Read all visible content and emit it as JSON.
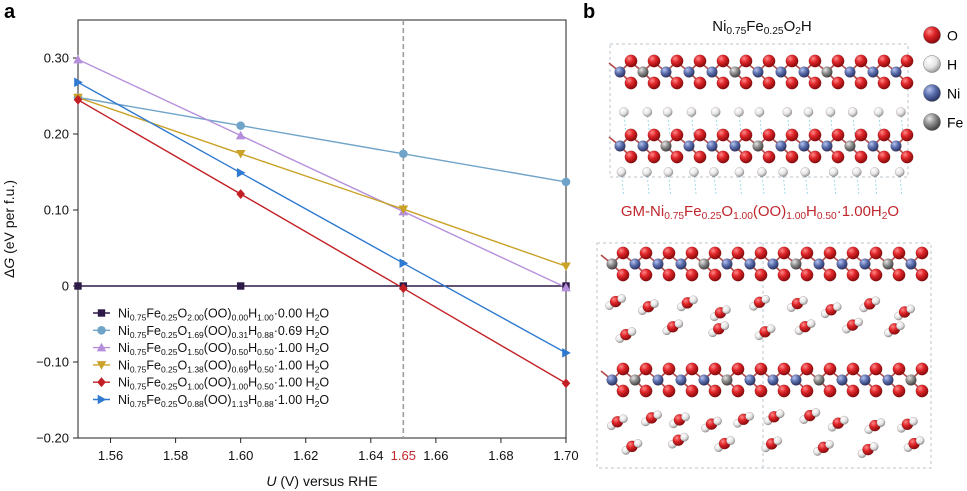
{
  "panels": {
    "a": "a",
    "b": "b"
  },
  "chart_data": {
    "type": "line",
    "xlabel_italic": "U",
    "xlabel_rest": " (V) versus RHE",
    "ylabel_italic": "G",
    "ylabel_prefix": "Δ",
    "ylabel_rest": " (eV per f.u.)",
    "xlim": [
      1.55,
      1.7
    ],
    "ylim": [
      -0.2,
      0.35
    ],
    "xticks": [
      "1.56",
      "1.58",
      "1.60",
      "1.62",
      "1.64",
      "1.66",
      "1.68",
      "1.70"
    ],
    "xtick_values": [
      1.56,
      1.58,
      1.6,
      1.62,
      1.64,
      1.66,
      1.68,
      1.7
    ],
    "yticks": [
      "0.30",
      "0.20",
      "0.10",
      "0",
      "−0.10",
      "−0.20"
    ],
    "ytick_values": [
      0.3,
      0.2,
      0.1,
      0,
      -0.1,
      -0.2
    ],
    "vline": {
      "x": 1.65,
      "label": "1.65",
      "color": "#c0272d"
    },
    "series": [
      {
        "name": "Ni0.75Fe0.25O2.00(OO)0.00H1.00·0.00 H2O",
        "name_parts": [
          [
            "Ni",
            ""
          ],
          [
            "0.75",
            "sub"
          ],
          [
            "Fe",
            ""
          ],
          [
            "0.25",
            "sub"
          ],
          [
            "O",
            ""
          ],
          [
            "2.00",
            "sub"
          ],
          [
            "(OO)",
            ""
          ],
          [
            "0.00",
            "sub"
          ],
          [
            "H",
            ""
          ],
          [
            "1.00",
            "sub"
          ],
          [
            "·0.00 H",
            ""
          ],
          [
            "2",
            "sub"
          ],
          [
            "O",
            ""
          ]
        ],
        "color": "#2e1a47",
        "marker": "square",
        "x": [
          1.55,
          1.6,
          1.65,
          1.7
        ],
        "y": [
          0.0,
          0.0,
          0.0,
          0.0
        ]
      },
      {
        "name": "Ni0.75Fe0.25O1.69(OO)0.31H0.88·0.69 H2O",
        "name_parts": [
          [
            "Ni",
            ""
          ],
          [
            "0.75",
            "sub"
          ],
          [
            "Fe",
            ""
          ],
          [
            "0.25",
            "sub"
          ],
          [
            "O",
            ""
          ],
          [
            "1.69",
            "sub"
          ],
          [
            "(OO)",
            ""
          ],
          [
            "0.31",
            "sub"
          ],
          [
            "H",
            ""
          ],
          [
            "0.88",
            "sub"
          ],
          [
            "·0.69 H",
            ""
          ],
          [
            "2",
            "sub"
          ],
          [
            "O",
            ""
          ]
        ],
        "color": "#6fa4c8",
        "marker": "circle",
        "x": [
          1.55,
          1.6,
          1.65,
          1.7
        ],
        "y": [
          0.248,
          0.211,
          0.174,
          0.137
        ]
      },
      {
        "name": "Ni0.75Fe0.25O1.50(OO)0.50H0.50·1.00 H2O",
        "name_parts": [
          [
            "Ni",
            ""
          ],
          [
            "0.75",
            "sub"
          ],
          [
            "Fe",
            ""
          ],
          [
            "0.25",
            "sub"
          ],
          [
            "O",
            ""
          ],
          [
            "1.50",
            "sub"
          ],
          [
            "(OO)",
            ""
          ],
          [
            "0.50",
            "sub"
          ],
          [
            "H",
            ""
          ],
          [
            "0.50",
            "sub"
          ],
          [
            "·1.00 H",
            ""
          ],
          [
            "2",
            "sub"
          ],
          [
            "O",
            ""
          ]
        ],
        "color": "#b68fdc",
        "marker": "triangle-up",
        "x": [
          1.55,
          1.6,
          1.65,
          1.7
        ],
        "y": [
          0.298,
          0.198,
          0.098,
          -0.002
        ]
      },
      {
        "name": "Ni0.75Fe0.25O1.38(OO)0.69H0.50·1.00 H2O",
        "name_parts": [
          [
            "Ni",
            ""
          ],
          [
            "0.75",
            "sub"
          ],
          [
            "Fe",
            ""
          ],
          [
            "0.25",
            "sub"
          ],
          [
            "O",
            ""
          ],
          [
            "1.38",
            "sub"
          ],
          [
            "(OO)",
            ""
          ],
          [
            "0.69",
            "sub"
          ],
          [
            "H",
            ""
          ],
          [
            "0.50",
            "sub"
          ],
          [
            "·1.00 H",
            ""
          ],
          [
            "2",
            "sub"
          ],
          [
            "O",
            ""
          ]
        ],
        "color": "#c9a227",
        "marker": "triangle-down",
        "x": [
          1.55,
          1.6,
          1.65,
          1.7
        ],
        "y": [
          0.248,
          0.174,
          0.101,
          0.026
        ]
      },
      {
        "name": "Ni0.75Fe0.25O1.00(OO)1.00H0.50·1.00 H2O",
        "name_parts": [
          [
            "Ni",
            ""
          ],
          [
            "0.75",
            "sub"
          ],
          [
            "Fe",
            ""
          ],
          [
            "0.25",
            "sub"
          ],
          [
            "O",
            ""
          ],
          [
            "1.00",
            "sub"
          ],
          [
            "(OO)",
            ""
          ],
          [
            "1.00",
            "sub"
          ],
          [
            "H",
            ""
          ],
          [
            "0.50",
            "sub"
          ],
          [
            "·1.00 H",
            ""
          ],
          [
            "2",
            "sub"
          ],
          [
            "O",
            ""
          ]
        ],
        "color": "#c21f24",
        "marker": "diamond",
        "x": [
          1.55,
          1.6,
          1.65,
          1.7
        ],
        "y": [
          0.245,
          0.121,
          -0.003,
          -0.128
        ]
      },
      {
        "name": "Ni0.75Fe0.25O0.88(OO)1.13H0.88·1.00 H2O",
        "name_parts": [
          [
            "Ni",
            ""
          ],
          [
            "0.75",
            "sub"
          ],
          [
            "Fe",
            ""
          ],
          [
            "0.25",
            "sub"
          ],
          [
            "O",
            ""
          ],
          [
            "0.88",
            "sub"
          ],
          [
            "(OO)",
            ""
          ],
          [
            "1.13",
            "sub"
          ],
          [
            "H",
            ""
          ],
          [
            "0.88",
            "sub"
          ],
          [
            "·1.00 H",
            ""
          ],
          [
            "2",
            "sub"
          ],
          [
            "O",
            ""
          ]
        ],
        "color": "#2f7ad0",
        "marker": "triangle-right",
        "x": [
          1.55,
          1.6,
          1.65,
          1.7
        ],
        "y": [
          0.268,
          0.149,
          0.03,
          -0.088
        ]
      }
    ]
  },
  "structures": {
    "top_label": "Ni0.75Fe0.25O2H",
    "top_label_parts": [
      [
        "Ni",
        ""
      ],
      [
        "0.75",
        "sub"
      ],
      [
        "Fe",
        ""
      ],
      [
        "0.25",
        "sub"
      ],
      [
        "O",
        ""
      ],
      [
        "2",
        "sub"
      ],
      [
        "H",
        ""
      ]
    ],
    "bottom_label": "GM-Ni0.75Fe0.25O1.00(OO)1.00H0.50·1.00H2O",
    "bottom_label_parts": [
      [
        "GM-Ni",
        ""
      ],
      [
        "0.75",
        "sub"
      ],
      [
        "Fe",
        ""
      ],
      [
        "0.25",
        "sub"
      ],
      [
        "O",
        ""
      ],
      [
        "1.00",
        "sub"
      ],
      [
        "(OO)",
        ""
      ],
      [
        "1.00",
        "sub"
      ],
      [
        "H",
        ""
      ],
      [
        "0.50",
        "sub"
      ],
      [
        "·1.00H",
        ""
      ],
      [
        "2",
        "sub"
      ],
      [
        "O",
        ""
      ]
    ],
    "bottom_label_color": "#c0272d"
  },
  "atom_legend": [
    {
      "label": "O",
      "color": "#d01c1f"
    },
    {
      "label": "H",
      "color": "#e8e8e8"
    },
    {
      "label": "Ni",
      "color": "#5b6fae"
    },
    {
      "label": "Fe",
      "color": "#8a8a8a"
    }
  ]
}
